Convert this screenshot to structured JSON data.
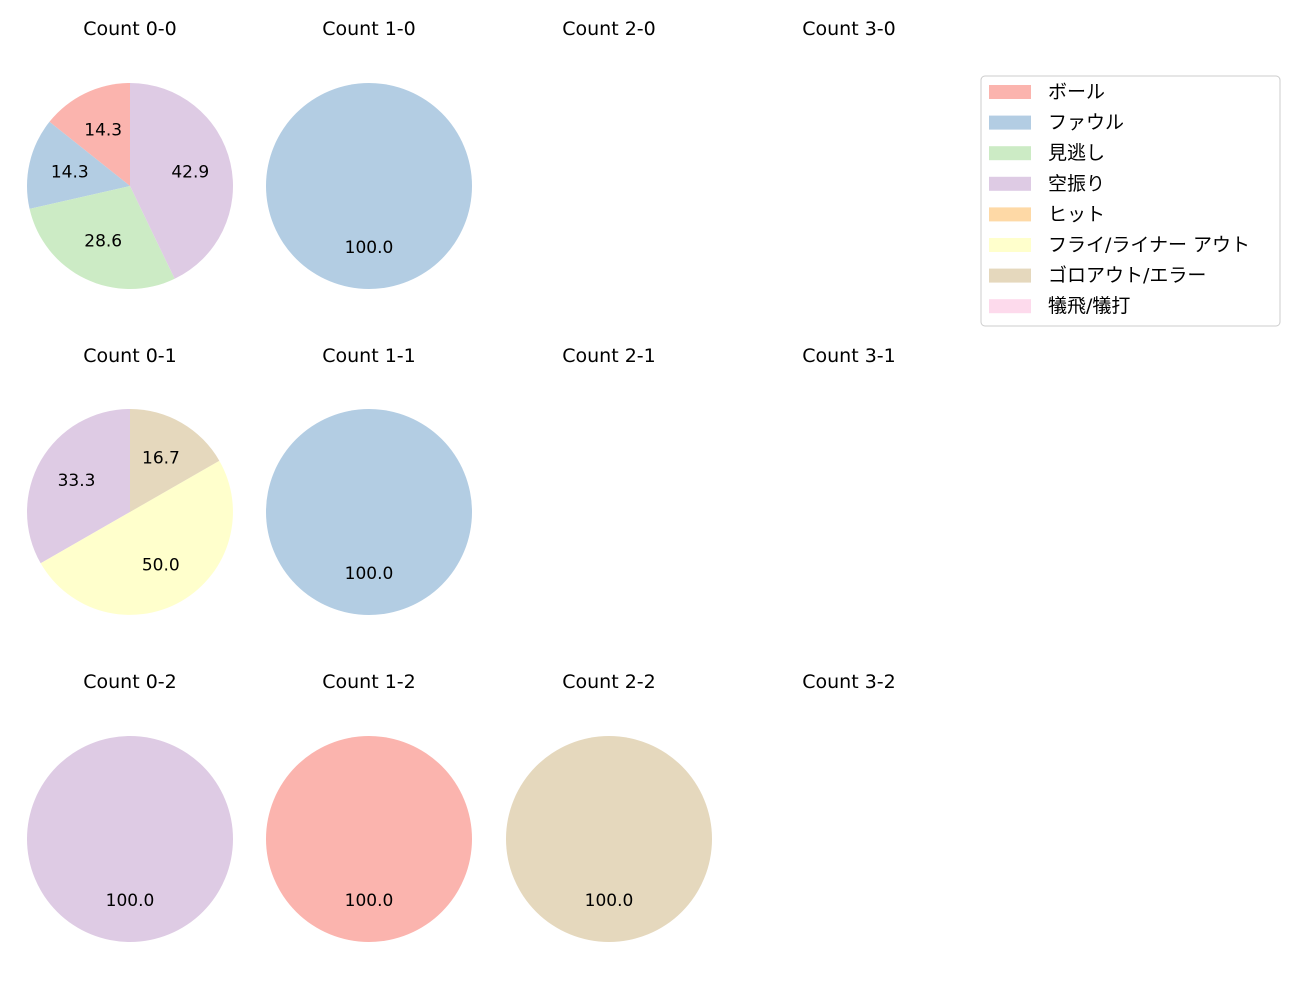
{
  "chart_data": {
    "type": "pie",
    "legend": {
      "placement": "top-right",
      "entries": [
        {
          "name": "ボール",
          "color": "#fbb4ae"
        },
        {
          "name": "ファウル",
          "color": "#b3cde3"
        },
        {
          "name": "見逃し",
          "color": "#ccebc5"
        },
        {
          "name": "空振り",
          "color": "#decbe4"
        },
        {
          "name": "ヒット",
          "color": "#fed9a6"
        },
        {
          "name": "フライ/ライナー アウト",
          "color": "#ffffcc"
        },
        {
          "name": "ゴロアウト/エラー",
          "color": "#e5d8bd"
        },
        {
          "name": "犠飛/犠打",
          "color": "#fddaec"
        }
      ]
    },
    "charts": [
      {
        "title": "Count 0-0",
        "slices": [
          {
            "category": "ボール",
            "value": 14.3,
            "label": "14.3"
          },
          {
            "category": "ファウル",
            "value": 14.3,
            "label": "14.3"
          },
          {
            "category": "見逃し",
            "value": 28.6,
            "label": "28.6"
          },
          {
            "category": "空振り",
            "value": 42.9,
            "label": "42.9"
          }
        ]
      },
      {
        "title": "Count 1-0",
        "slices": [
          {
            "category": "ファウル",
            "value": 100.0,
            "label": "100.0"
          }
        ]
      },
      {
        "title": "Count 2-0",
        "slices": []
      },
      {
        "title": "Count 3-0",
        "slices": []
      },
      {
        "title": "Count 0-1",
        "slices": [
          {
            "category": "空振り",
            "value": 33.3,
            "label": "33.3"
          },
          {
            "category": "フライ/ライナー アウト",
            "value": 50.0,
            "label": "50.0"
          },
          {
            "category": "ゴロアウト/エラー",
            "value": 16.7,
            "label": "16.7"
          }
        ]
      },
      {
        "title": "Count 1-1",
        "slices": [
          {
            "category": "ファウル",
            "value": 100.0,
            "label": "100.0"
          }
        ]
      },
      {
        "title": "Count 2-1",
        "slices": []
      },
      {
        "title": "Count 3-1",
        "slices": []
      },
      {
        "title": "Count 0-2",
        "slices": [
          {
            "category": "空振り",
            "value": 100.0,
            "label": "100.0"
          }
        ]
      },
      {
        "title": "Count 1-2",
        "slices": [
          {
            "category": "ボール",
            "value": 100.0,
            "label": "100.0"
          }
        ]
      },
      {
        "title": "Count 2-2",
        "slices": [
          {
            "category": "ゴロアウト/エラー",
            "value": 100.0,
            "label": "100.0"
          }
        ]
      },
      {
        "title": "Count 3-2",
        "slices": []
      }
    ]
  }
}
